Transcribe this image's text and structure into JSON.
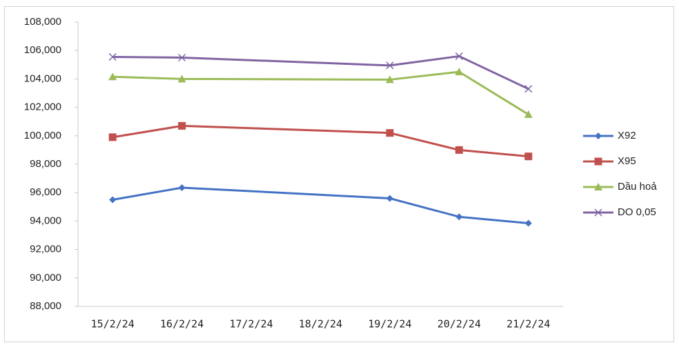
{
  "chart_data": {
    "type": "line",
    "x": [
      "15/2/24",
      "16/2/24",
      "19/2/24",
      "20/2/24",
      "21/2/24"
    ],
    "xticks": [
      "15/2/24",
      "16/2/24",
      "17/2/24",
      "18/2/24",
      "19/2/24",
      "20/2/24",
      "21/2/24"
    ],
    "ylim": [
      88000,
      108000
    ],
    "yticks": [
      {
        "value": 88000,
        "label": "88,000"
      },
      {
        "value": 90000,
        "label": "90,000"
      },
      {
        "value": 92000,
        "label": "92,000"
      },
      {
        "value": 94000,
        "label": "94,000"
      },
      {
        "value": 96000,
        "label": "96,000"
      },
      {
        "value": 98000,
        "label": "98,000"
      },
      {
        "value": 100000,
        "label": "100,000"
      },
      {
        "value": 102000,
        "label": "102,000"
      },
      {
        "value": 104000,
        "label": "104,000"
      },
      {
        "value": 106000,
        "label": "106,000"
      },
      {
        "value": 108000,
        "label": "108,000"
      }
    ],
    "grid": false,
    "legend": "right",
    "series": [
      {
        "name": "X92",
        "color": "#4472c4",
        "marker": "diamond",
        "values": [
          95500,
          96350,
          95600,
          94300,
          93850
        ]
      },
      {
        "name": "X95",
        "color": "#c0504d",
        "marker": "square",
        "values": [
          99900,
          100700,
          100200,
          99000,
          98550
        ]
      },
      {
        "name": "Dầu hoả",
        "color": "#9bbb59",
        "marker": "triangle",
        "values": [
          104150,
          104000,
          103950,
          104500,
          101500
        ]
      },
      {
        "name": "DO 0,05",
        "color": "#8064a2",
        "marker": "x",
        "values": [
          105550,
          105500,
          104950,
          105600,
          103300
        ]
      }
    ]
  }
}
